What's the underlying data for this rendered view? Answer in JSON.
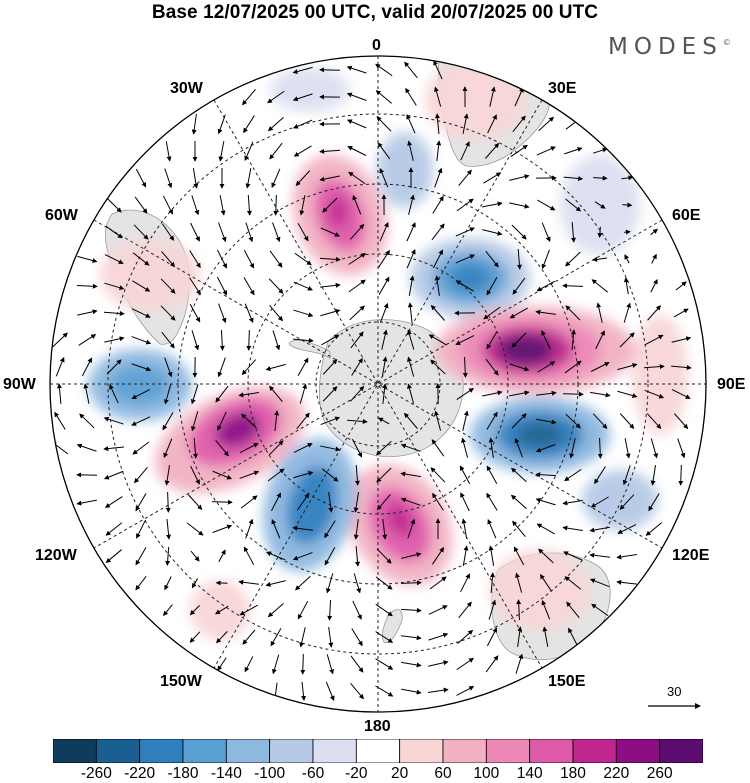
{
  "title": "Base 12/07/2025 00 UTC, valid 20/07/2025 00 UTC",
  "brand": "MODES",
  "brand_mark": "©",
  "longitude_labels": {
    "top": "0",
    "bottom": "180",
    "left": "90W",
    "right": "90E",
    "nnw": "30W",
    "wnw": "60W",
    "nne": "30E",
    "ene": "60E",
    "wsw": "120W",
    "ssw": "150W",
    "esе_placeholder": "",
    "ese": "120E",
    "sse": "150E"
  },
  "vector_reference": {
    "value": "30"
  },
  "colorbar": {
    "ticks": [
      "-260",
      "-220",
      "-180",
      "-140",
      "-100",
      "-60",
      "-20",
      "20",
      "60",
      "100",
      "140",
      "180",
      "220",
      "260"
    ],
    "colors": [
      "#0f3b5c",
      "#1a5f91",
      "#2f7fbf",
      "#5a9fd4",
      "#8db8e0",
      "#b6c9e6",
      "#dcdff0",
      "#ffffff",
      "#f8d6d6",
      "#f2b1c2",
      "#ec87b6",
      "#e05aaa",
      "#c0268e",
      "#8e0d84",
      "#5c0b6e"
    ]
  },
  "chart_data": {
    "type": "polar-stereographic anomaly map",
    "title": "Base 12/07/2025 00 UTC, valid 20/07/2025 00 UTC",
    "projection": "south polar stereographic",
    "field_levels": [
      -260,
      -220,
      -180,
      -140,
      -100,
      -60,
      -20,
      20,
      60,
      100,
      140,
      180,
      220,
      260
    ],
    "centers": [
      {
        "lon": 60,
        "lat": -55,
        "value": -150
      },
      {
        "lon": 90,
        "lat": -60,
        "value": 260
      },
      {
        "lon": 115,
        "lat": -55,
        "value": -180
      },
      {
        "lon": 150,
        "lat": -60,
        "value": 180
      },
      {
        "lon": -160,
        "lat": -60,
        "value": -140
      },
      {
        "lon": -120,
        "lat": -55,
        "value": 220
      },
      {
        "lon": -95,
        "lat": -50,
        "value": -120
      },
      {
        "lon": -15,
        "lat": -45,
        "value": 200
      },
      {
        "lon": 15,
        "lat": -50,
        "value": -60
      }
    ]
  }
}
